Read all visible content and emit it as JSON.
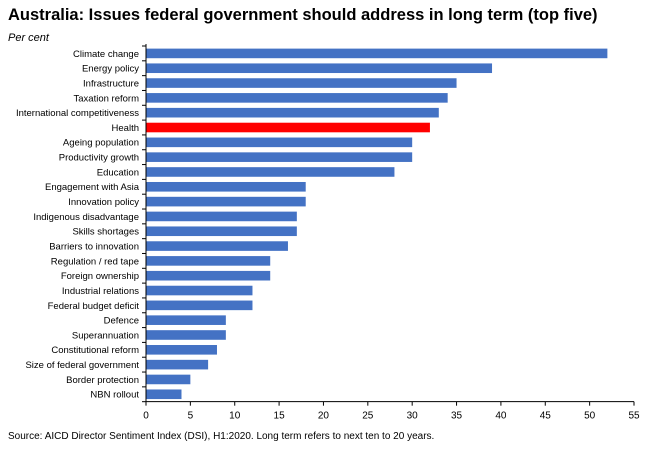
{
  "title": "Australia: Issues federal government should address in long term (top five)",
  "subtitle": "Per cent",
  "source": "Source: AICD Director Sentiment Index (DSI), H1:2020.  Long term refers to next ten to 20 years.",
  "colors": {
    "default_bar": "#4472c4",
    "highlight_bar": "#ff0000",
    "axis": "#000000"
  },
  "chart_data": {
    "type": "bar",
    "orientation": "horizontal",
    "title": "Australia: Issues federal government should address in long term (top five)",
    "ylabel": "Per cent",
    "xlabel": "",
    "xlim": [
      0,
      55
    ],
    "xticks": [
      0,
      5,
      10,
      15,
      20,
      25,
      30,
      35,
      40,
      45,
      50,
      55
    ],
    "grid": false,
    "legend": "none",
    "highlight": "Health",
    "categories": [
      "Climate change",
      "Energy policy",
      "Infrastructure",
      "Taxation reform",
      "International competitiveness",
      "Health",
      "Ageing population",
      "Productivity growth",
      "Education",
      "Engagement with Asia",
      "Innovation policy",
      "Indigenous disadvantage",
      "Skills shortages",
      "Barriers to innovation",
      "Regulation / red tape",
      "Foreign ownership",
      "Industrial relations",
      "Federal budget deficit",
      "Defence",
      "Superannuation",
      "Constitutional reform",
      "Size of federal government",
      "Border protection",
      "NBN rollout"
    ],
    "values": [
      52,
      39,
      35,
      34,
      33,
      32,
      30,
      30,
      28,
      18,
      18,
      17,
      17,
      16,
      14,
      14,
      12,
      12,
      9,
      9,
      8,
      7,
      5,
      4
    ]
  }
}
